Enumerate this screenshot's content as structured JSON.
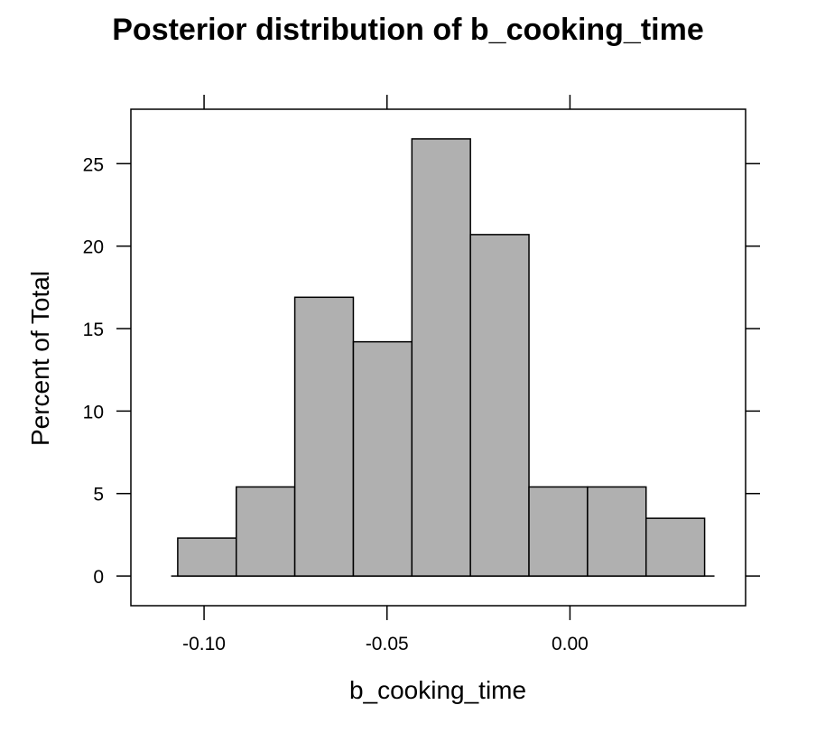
{
  "chart_data": {
    "type": "bar",
    "title": "Posterior distribution of b_cooking_time",
    "xlabel": "b_cooking_time",
    "ylabel": "Percent of Total",
    "bin_edges": [
      -0.1072,
      -0.0912,
      -0.0752,
      -0.0592,
      -0.0432,
      -0.0272,
      -0.0112,
      0.0048,
      0.0208,
      0.0368
    ],
    "values": [
      2.3,
      5.4,
      16.9,
      14.2,
      26.5,
      20.7,
      5.4,
      5.4,
      3.5
    ],
    "xlim": [
      -0.12,
      0.048
    ],
    "ylim": [
      -1.8,
      28.3
    ],
    "x_ticks": [
      -0.1,
      -0.05,
      0.0
    ],
    "x_tick_labels": [
      "-0.10",
      "-0.05",
      "0.00"
    ],
    "y_ticks": [
      0,
      5,
      10,
      15,
      20,
      25
    ],
    "y_tick_labels": [
      "0",
      "5",
      "10",
      "15",
      "20",
      "25"
    ],
    "baseline_xlim": [
      -0.109,
      0.0395
    ],
    "colors": {
      "bar_fill": "#b0b0b0",
      "bar_stroke": "#000000",
      "axis": "#000000"
    },
    "grid": false,
    "legend": "none"
  }
}
